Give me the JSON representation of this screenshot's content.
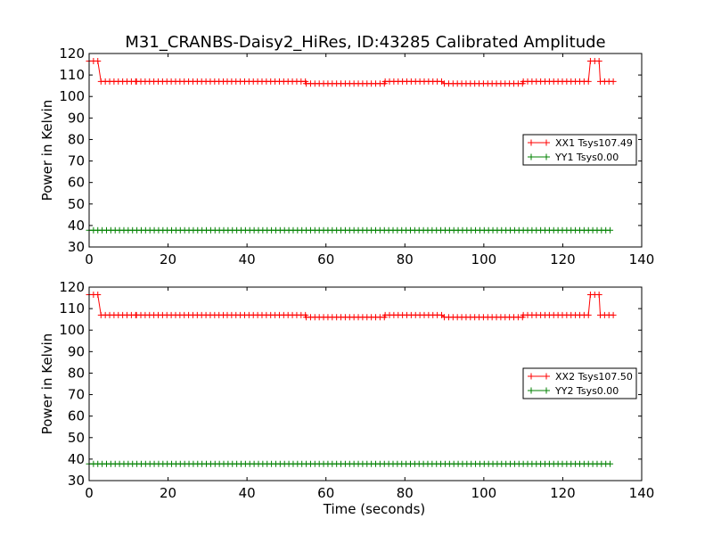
{
  "title": "M31_CRANBS-Daisy2_HiRes, ID:43285 Calibrated Amplitude",
  "chart_data": [
    {
      "type": "line",
      "ylabel": "Power in Kelvin",
      "xlabel": "",
      "xlim": [
        0,
        140
      ],
      "ylim": [
        30,
        120
      ],
      "xticks": [
        0,
        20,
        40,
        60,
        80,
        100,
        120,
        140
      ],
      "yticks": [
        30,
        40,
        50,
        60,
        70,
        80,
        90,
        100,
        110,
        120
      ],
      "legend_position": "center-right",
      "grid": false,
      "series": [
        {
          "name": "XX1 Tsys107.49",
          "color": "#ff0000",
          "marker": "+",
          "segments": [
            {
              "x0": 0,
              "x1": 3,
              "y": 116.5
            },
            {
              "x0": 3,
              "x1": 12,
              "y": 107
            },
            {
              "x0": 12,
              "x1": 35,
              "y": 107
            },
            {
              "x0": 35,
              "x1": 55,
              "y": 107
            },
            {
              "x0": 55,
              "x1": 75,
              "y": 106
            },
            {
              "x0": 75,
              "x1": 90,
              "y": 107
            },
            {
              "x0": 90,
              "x1": 110,
              "y": 106
            },
            {
              "x0": 110,
              "x1": 127,
              "y": 107
            },
            {
              "x0": 127,
              "x1": 129.5,
              "y": 116.5
            },
            {
              "x0": 129.5,
              "x1": 133,
              "y": 107
            }
          ]
        },
        {
          "name": "YY1 Tsys0.00",
          "color": "#008000",
          "marker": "+",
          "segments": [
            {
              "x0": 0,
              "x1": 133,
              "y": 37.8
            }
          ]
        }
      ]
    },
    {
      "type": "line",
      "ylabel": "Power in Kelvin",
      "xlabel": "Time (seconds)",
      "xlim": [
        0,
        140
      ],
      "ylim": [
        30,
        120
      ],
      "xticks": [
        0,
        20,
        40,
        60,
        80,
        100,
        120,
        140
      ],
      "yticks": [
        30,
        40,
        50,
        60,
        70,
        80,
        90,
        100,
        110,
        120
      ],
      "legend_position": "center-right",
      "grid": false,
      "series": [
        {
          "name": "XX2 Tsys107.50",
          "color": "#ff0000",
          "marker": "+",
          "segments": [
            {
              "x0": 0,
              "x1": 3,
              "y": 116.5
            },
            {
              "x0": 3,
              "x1": 12,
              "y": 107
            },
            {
              "x0": 12,
              "x1": 35,
              "y": 107
            },
            {
              "x0": 35,
              "x1": 55,
              "y": 107
            },
            {
              "x0": 55,
              "x1": 75,
              "y": 106
            },
            {
              "x0": 75,
              "x1": 90,
              "y": 107
            },
            {
              "x0": 90,
              "x1": 110,
              "y": 106
            },
            {
              "x0": 110,
              "x1": 127,
              "y": 107
            },
            {
              "x0": 127,
              "x1": 129.5,
              "y": 116.5
            },
            {
              "x0": 129.5,
              "x1": 133,
              "y": 107
            }
          ]
        },
        {
          "name": "YY2 Tsys0.00",
          "color": "#008000",
          "marker": "+",
          "segments": [
            {
              "x0": 0,
              "x1": 133,
              "y": 37.8
            }
          ]
        }
      ]
    }
  ]
}
